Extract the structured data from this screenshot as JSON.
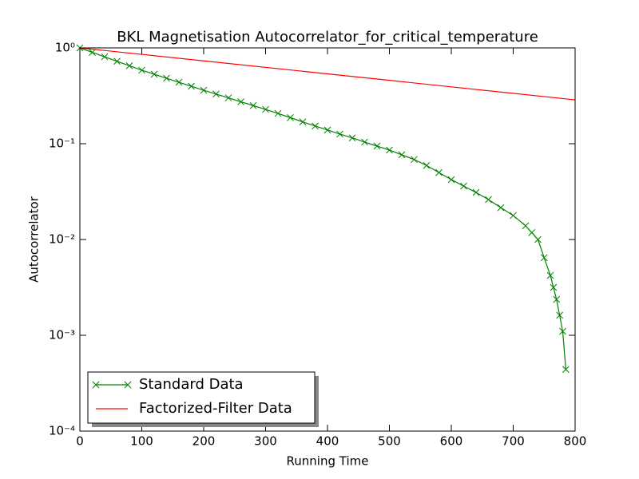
{
  "chart_data": {
    "type": "line",
    "title": "BKL Magnetisation Autocorrelator_for_critical_temperature",
    "x_label": "Running Time",
    "y_label": "Autocorrelator",
    "log_y": true,
    "legend": "lower left",
    "xlim": [
      0,
      800
    ],
    "xticks": [
      0,
      100,
      200,
      300,
      400,
      500,
      600,
      700,
      800
    ],
    "ylim": [
      0.0001,
      1
    ],
    "yticks": [
      {
        "value": 0.0001,
        "label": "10⁻⁴"
      },
      {
        "value": 0.001,
        "label": "10⁻³"
      },
      {
        "value": 0.01,
        "label": "10⁻²"
      },
      {
        "value": 0.1,
        "label": "10⁻¹"
      },
      {
        "value": 1,
        "label": "10⁰"
      }
    ],
    "series": [
      {
        "name": "Standard Data",
        "color": "#008000",
        "marker": "x",
        "x": [
          0,
          20,
          40,
          60,
          80,
          100,
          120,
          140,
          160,
          180,
          200,
          220,
          240,
          260,
          280,
          300,
          320,
          340,
          360,
          380,
          400,
          420,
          440,
          460,
          480,
          500,
          520,
          540,
          560,
          580,
          600,
          620,
          640,
          660,
          680,
          700,
          720,
          730,
          740,
          750,
          760,
          765,
          770,
          775,
          780,
          785
        ],
        "values": [
          1,
          0.898,
          0.807,
          0.725,
          0.651,
          0.585,
          0.531,
          0.482,
          0.438,
          0.398,
          0.361,
          0.33,
          0.301,
          0.274,
          0.25,
          0.228,
          0.207,
          0.187,
          0.169,
          0.153,
          0.139,
          0.126,
          0.115,
          0.104,
          0.0944,
          0.0858,
          0.0766,
          0.0684,
          0.0593,
          0.05,
          0.0422,
          0.0361,
          0.031,
          0.0261,
          0.0215,
          0.0178,
          0.0139,
          0.0118,
          0.01,
          0.00646,
          0.00422,
          0.00316,
          0.00237,
          0.00162,
          0.0011,
          0.00044
        ]
      },
      {
        "name": "Factorized-Filter Data",
        "color": "#ff0000",
        "x": [
          0,
          200,
          400,
          600,
          800
        ],
        "values": [
          1,
          0.732,
          0.536,
          0.392,
          0.287
        ]
      }
    ]
  }
}
